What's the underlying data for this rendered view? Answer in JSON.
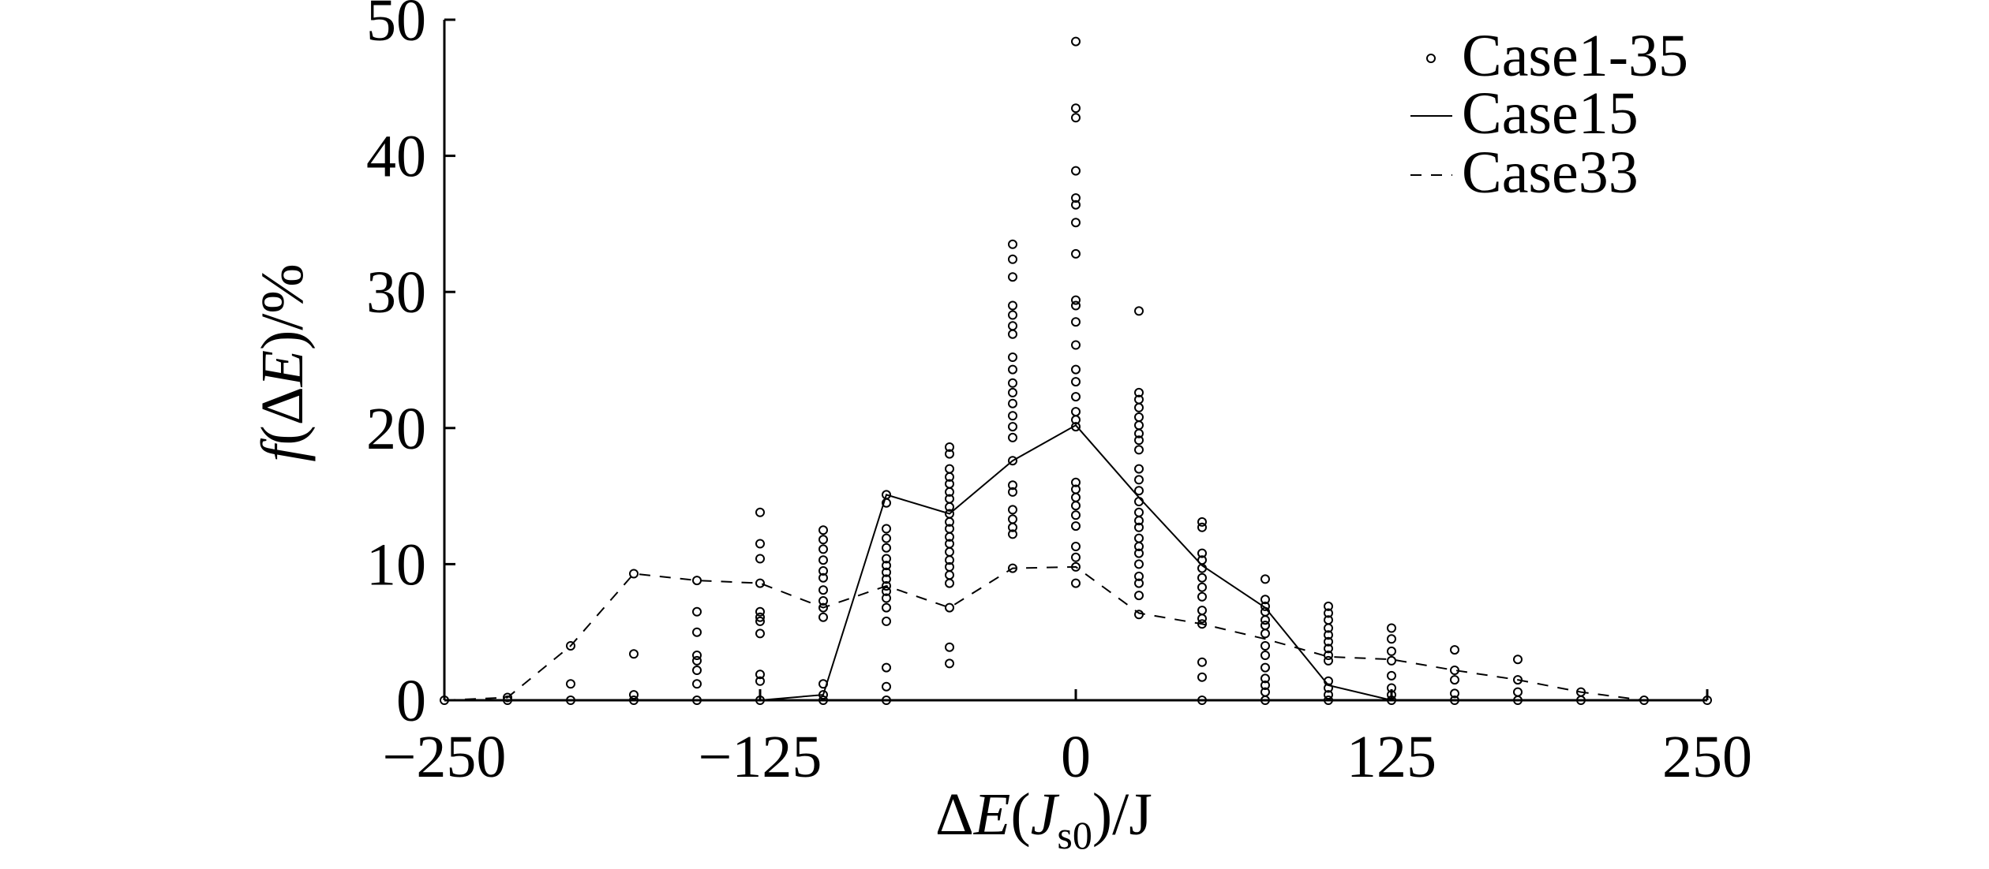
{
  "chart_data": {
    "type": "scatter",
    "xlabel": {
      "delta": "Δ",
      "var": "E",
      "open": "(",
      "sub_var": "J",
      "sub": "s0",
      "tail": ")/J"
    },
    "ylabel": {
      "func": "f",
      "open": "(Δ",
      "var": "E",
      "tail": ")/%"
    },
    "xlim": [
      -250,
      250
    ],
    "ylim": [
      0,
      50
    ],
    "xticks": [
      -250,
      -125,
      0,
      125,
      250
    ],
    "xtick_labels": [
      "−250",
      "−125",
      "0",
      "125",
      "250"
    ],
    "yticks": [
      0,
      10,
      20,
      30,
      40,
      50
    ],
    "ytick_labels": [
      "0",
      "10",
      "20",
      "30",
      "40",
      "50"
    ],
    "grid": false,
    "legend_position": "top-right",
    "series": [
      {
        "name": "Case1-35",
        "style": "open-circle",
        "points": [
          [
            -250,
            0
          ],
          [
            -225,
            0
          ],
          [
            -225,
            0.2
          ],
          [
            -200,
            0
          ],
          [
            -200,
            1.2
          ],
          [
            -200,
            4.0
          ],
          [
            -175,
            0
          ],
          [
            -175,
            0.4
          ],
          [
            -175,
            3.4
          ],
          [
            -175,
            9.3
          ],
          [
            -150,
            0
          ],
          [
            -150,
            1.2
          ],
          [
            -150,
            2.2
          ],
          [
            -150,
            2.9
          ],
          [
            -150,
            3.3
          ],
          [
            -150,
            5.0
          ],
          [
            -150,
            6.5
          ],
          [
            -150,
            8.8
          ],
          [
            -125,
            0
          ],
          [
            -125,
            1.4
          ],
          [
            -125,
            1.9
          ],
          [
            -125,
            4.9
          ],
          [
            -125,
            5.8
          ],
          [
            -125,
            6.1
          ],
          [
            -125,
            6.5
          ],
          [
            -125,
            8.6
          ],
          [
            -125,
            10.4
          ],
          [
            -125,
            11.5
          ],
          [
            -125,
            13.8
          ],
          [
            -100,
            0
          ],
          [
            -100,
            0.4
          ],
          [
            -100,
            1.2
          ],
          [
            -100,
            6.1
          ],
          [
            -100,
            6.8
          ],
          [
            -100,
            7.3
          ],
          [
            -100,
            8.1
          ],
          [
            -100,
            9.0
          ],
          [
            -100,
            9.5
          ],
          [
            -100,
            10.3
          ],
          [
            -100,
            11.1
          ],
          [
            -100,
            11.8
          ],
          [
            -100,
            12.5
          ],
          [
            -75,
            0
          ],
          [
            -75,
            1.0
          ],
          [
            -75,
            2.4
          ],
          [
            -75,
            5.8
          ],
          [
            -75,
            6.8
          ],
          [
            -75,
            7.5
          ],
          [
            -75,
            8.0
          ],
          [
            -75,
            8.4
          ],
          [
            -75,
            8.9
          ],
          [
            -75,
            9.4
          ],
          [
            -75,
            9.9
          ],
          [
            -75,
            10.4
          ],
          [
            -75,
            11.2
          ],
          [
            -75,
            11.9
          ],
          [
            -75,
            12.6
          ],
          [
            -75,
            14.5
          ],
          [
            -75,
            15.1
          ],
          [
            -50,
            2.7
          ],
          [
            -50,
            3.9
          ],
          [
            -50,
            6.8
          ],
          [
            -50,
            8.6
          ],
          [
            -50,
            9.2
          ],
          [
            -50,
            9.8
          ],
          [
            -50,
            10.3
          ],
          [
            -50,
            10.9
          ],
          [
            -50,
            11.5
          ],
          [
            -50,
            12.0
          ],
          [
            -50,
            12.6
          ],
          [
            -50,
            13.1
          ],
          [
            -50,
            13.7
          ],
          [
            -50,
            14.2
          ],
          [
            -50,
            14.8
          ],
          [
            -50,
            15.3
          ],
          [
            -50,
            15.9
          ],
          [
            -50,
            16.4
          ],
          [
            -50,
            17.0
          ],
          [
            -50,
            18.1
          ],
          [
            -50,
            18.6
          ],
          [
            -25,
            9.7
          ],
          [
            -25,
            12.2
          ],
          [
            -25,
            12.7
          ],
          [
            -25,
            13.3
          ],
          [
            -25,
            14.0
          ],
          [
            -25,
            15.3
          ],
          [
            -25,
            15.8
          ],
          [
            -25,
            17.6
          ],
          [
            -25,
            19.3
          ],
          [
            -25,
            20.1
          ],
          [
            -25,
            20.9
          ],
          [
            -25,
            21.8
          ],
          [
            -25,
            22.6
          ],
          [
            -25,
            23.3
          ],
          [
            -25,
            24.3
          ],
          [
            -25,
            25.2
          ],
          [
            -25,
            26.9
          ],
          [
            -25,
            27.5
          ],
          [
            -25,
            28.3
          ],
          [
            -25,
            29.0
          ],
          [
            -25,
            31.1
          ],
          [
            -25,
            32.4
          ],
          [
            -25,
            33.5
          ],
          [
            0,
            8.6
          ],
          [
            0,
            9.8
          ],
          [
            0,
            10.5
          ],
          [
            0,
            11.3
          ],
          [
            0,
            12.8
          ],
          [
            0,
            13.6
          ],
          [
            0,
            14.3
          ],
          [
            0,
            14.9
          ],
          [
            0,
            15.5
          ],
          [
            0,
            16.0
          ],
          [
            0,
            20.1
          ],
          [
            0,
            20.6
          ],
          [
            0,
            21.2
          ],
          [
            0,
            22.3
          ],
          [
            0,
            23.4
          ],
          [
            0,
            24.3
          ],
          [
            0,
            26.1
          ],
          [
            0,
            27.8
          ],
          [
            0,
            29.0
          ],
          [
            0,
            29.4
          ],
          [
            0,
            32.8
          ],
          [
            0,
            35.1
          ],
          [
            0,
            36.4
          ],
          [
            0,
            36.9
          ],
          [
            0,
            38.9
          ],
          [
            0,
            42.8
          ],
          [
            0,
            43.5
          ],
          [
            0,
            48.4
          ],
          [
            25,
            6.3
          ],
          [
            25,
            7.7
          ],
          [
            25,
            8.6
          ],
          [
            25,
            9.1
          ],
          [
            25,
            10.0
          ],
          [
            25,
            10.8
          ],
          [
            25,
            11.3
          ],
          [
            25,
            11.9
          ],
          [
            25,
            12.7
          ],
          [
            25,
            13.2
          ],
          [
            25,
            13.8
          ],
          [
            25,
            14.6
          ],
          [
            25,
            15.4
          ],
          [
            25,
            16.2
          ],
          [
            25,
            17.0
          ],
          [
            25,
            18.4
          ],
          [
            25,
            19.1
          ],
          [
            25,
            19.6
          ],
          [
            25,
            20.2
          ],
          [
            25,
            20.8
          ],
          [
            25,
            21.5
          ],
          [
            25,
            22.1
          ],
          [
            25,
            22.6
          ],
          [
            25,
            28.6
          ],
          [
            50,
            0
          ],
          [
            50,
            1.7
          ],
          [
            50,
            2.8
          ],
          [
            50,
            5.6
          ],
          [
            50,
            6.0
          ],
          [
            50,
            6.6
          ],
          [
            50,
            7.6
          ],
          [
            50,
            8.3
          ],
          [
            50,
            9.0
          ],
          [
            50,
            9.7
          ],
          [
            50,
            10.3
          ],
          [
            50,
            10.8
          ],
          [
            50,
            12.7
          ],
          [
            50,
            13.1
          ],
          [
            75,
            0
          ],
          [
            75,
            0.6
          ],
          [
            75,
            1.1
          ],
          [
            75,
            1.6
          ],
          [
            75,
            2.4
          ],
          [
            75,
            3.3
          ],
          [
            75,
            4.0
          ],
          [
            75,
            4.9
          ],
          [
            75,
            5.5
          ],
          [
            75,
            5.9
          ],
          [
            75,
            6.5
          ],
          [
            75,
            6.9
          ],
          [
            75,
            7.4
          ],
          [
            75,
            8.9
          ],
          [
            100,
            0
          ],
          [
            100,
            0.4
          ],
          [
            100,
            0.9
          ],
          [
            100,
            1.4
          ],
          [
            100,
            2.9
          ],
          [
            100,
            3.3
          ],
          [
            100,
            3.8
          ],
          [
            100,
            4.3
          ],
          [
            100,
            4.8
          ],
          [
            100,
            5.3
          ],
          [
            100,
            5.9
          ],
          [
            100,
            6.4
          ],
          [
            100,
            6.9
          ],
          [
            125,
            0
          ],
          [
            125,
            0.4
          ],
          [
            125,
            0.9
          ],
          [
            125,
            1.8
          ],
          [
            125,
            2.9
          ],
          [
            125,
            3.6
          ],
          [
            125,
            4.5
          ],
          [
            125,
            5.3
          ],
          [
            150,
            0
          ],
          [
            150,
            0.5
          ],
          [
            150,
            1.5
          ],
          [
            150,
            2.2
          ],
          [
            150,
            3.7
          ],
          [
            175,
            0
          ],
          [
            175,
            0.6
          ],
          [
            175,
            1.5
          ],
          [
            175,
            3.0
          ],
          [
            200,
            0
          ],
          [
            200,
            0.6
          ],
          [
            225,
            0
          ],
          [
            250,
            0
          ]
        ]
      },
      {
        "name": "Case15",
        "style": "solid-line",
        "x": [
          -250,
          -225,
          -200,
          -175,
          -150,
          -125,
          -100,
          -75,
          -50,
          -25,
          0,
          25,
          50,
          75,
          100,
          125,
          150,
          175,
          200,
          225,
          250
        ],
        "y": [
          0,
          0,
          0,
          0,
          0,
          0,
          0.4,
          15.1,
          13.7,
          17.6,
          20.2,
          14.9,
          9.9,
          6.8,
          1.1,
          0,
          0,
          0,
          0,
          0,
          0
        ]
      },
      {
        "name": "Case33",
        "style": "dashed-line",
        "x": [
          -250,
          -225,
          -200,
          -175,
          -150,
          -125,
          -100,
          -75,
          -50,
          -25,
          0,
          25,
          50,
          75,
          100,
          125,
          150,
          175,
          200,
          225,
          250
        ],
        "y": [
          0,
          0.2,
          4.0,
          9.3,
          8.8,
          8.6,
          6.8,
          8.4,
          6.8,
          9.7,
          9.8,
          6.4,
          5.6,
          4.5,
          3.2,
          3.0,
          2.2,
          1.5,
          0.6,
          0,
          0
        ]
      }
    ]
  }
}
